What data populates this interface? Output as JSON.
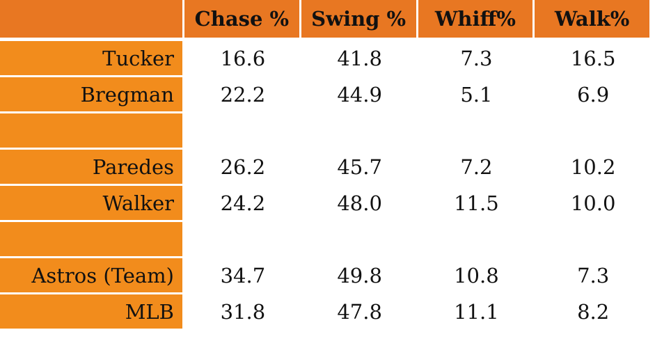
{
  "chart_data": {
    "type": "table",
    "columns": [
      "",
      "Chase %",
      "Swing %",
      "Whiff%",
      "Walk%"
    ],
    "rows": [
      {
        "label": "Tucker",
        "values": [
          "16.6",
          "41.8",
          "7.3",
          "16.5"
        ]
      },
      {
        "label": "Bregman",
        "values": [
          "22.2",
          "44.9",
          "5.1",
          "6.9"
        ]
      },
      {
        "label": "",
        "values": [
          "",
          "",
          "",
          ""
        ]
      },
      {
        "label": "Paredes",
        "values": [
          "26.2",
          "45.7",
          "7.2",
          "10.2"
        ]
      },
      {
        "label": "Walker",
        "values": [
          "24.2",
          "48.0",
          "11.5",
          "10.0"
        ]
      },
      {
        "label": "",
        "values": [
          "",
          "",
          "",
          ""
        ]
      },
      {
        "label": "Astros (Team)",
        "values": [
          "34.7",
          "49.8",
          "10.8",
          "7.3"
        ]
      },
      {
        "label": "MLB",
        "values": [
          "31.8",
          "47.8",
          "11.1",
          "8.2"
        ]
      }
    ],
    "colors": {
      "header_fill": "#E87722",
      "row_label_fill": "#F28C1C",
      "cell_fill": "#FFFFFF",
      "text": "#111111"
    }
  }
}
